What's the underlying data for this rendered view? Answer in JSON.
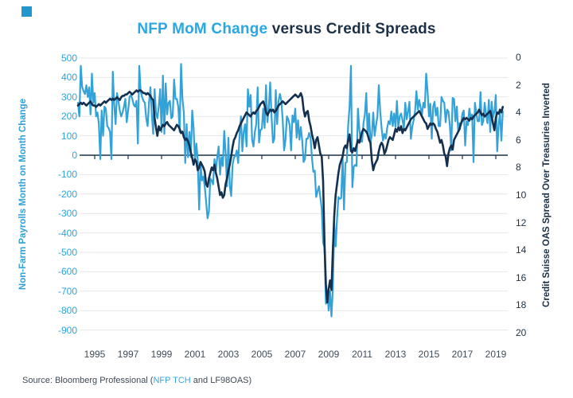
{
  "title": {
    "part1": "NFP MoM Change",
    "part2": " versus Credit Spreads",
    "blue": "#29A8E2",
    "navy": "#1C3147"
  },
  "brand_square_color": "#2496CE",
  "source": {
    "prefix": "Source: Bloomberg Professional (",
    "link": "NFP TCH",
    "suffix": " and LF98OAS)"
  },
  "chart_data": {
    "type": "line",
    "title": "NFP MoM Change versus Credit Spreads",
    "x_start": "1994-01",
    "x_frequency": "monthly",
    "x_tick_labels": [
      "1995",
      "1997",
      "1999",
      "2001",
      "2003",
      "2005",
      "2007",
      "2009",
      "2011",
      "2013",
      "2015",
      "2017",
      "2019"
    ],
    "grid": "horizontal gridlines every 100 units of left axis; dark baseline at left-axis 0 with year ticks",
    "left_axis": {
      "label": "Non-Farm Payrolls Month on Month Change",
      "ticks": [
        500,
        400,
        300,
        200,
        100,
        0,
        -100,
        -200,
        -300,
        -400,
        -500,
        -600,
        -700,
        -800,
        -900
      ],
      "range": [
        -900,
        500
      ],
      "color": "#2FA2D9"
    },
    "right_axis": {
      "label": "Credit Suisse OAS Spread Over Treasuries Inverted",
      "ticks": [
        0,
        2,
        4,
        6,
        8,
        10,
        12,
        14,
        16,
        18,
        20
      ],
      "range": [
        0,
        20
      ],
      "inverted": true,
      "color": "#1C3147"
    },
    "series": [
      {
        "name": "NFP MoM Change",
        "axis": "left",
        "color": "#33A2D9",
        "values": [
          270,
          200,
          460,
          350,
          330,
          315,
          360,
          300,
          350,
          210,
          420,
          270,
          320,
          200,
          220,
          160,
          -20,
          230,
          100,
          250,
          240,
          150,
          140,
          120,
          -20,
          430,
          260,
          160,
          320,
          280,
          230,
          200,
          220,
          250,
          290,
          170,
          230,
          300,
          310,
          290,
          260,
          250,
          280,
          60,
          460,
          330,
          300,
          280,
          270,
          190,
          150,
          270,
          350,
          210,
          110,
          340,
          220,
          190,
          250,
          340,
          120,
          410,
          110,
          370,
          210,
          270,
          280,
          190,
          200,
          390,
          290,
          290,
          250,
          120,
          470,
          290,
          220,
          -40,
          160,
          -10,
          120,
          -10,
          230,
          140,
          -30,
          60,
          -30,
          -280,
          -40,
          -130,
          -110,
          -160,
          -240,
          -325,
          -290,
          -120,
          -130,
          -150,
          -20,
          -80,
          -10,
          45,
          -100,
          -10,
          -55,
          125,
          10,
          -160,
          90,
          -160,
          -210,
          -50,
          -10,
          -5,
          25,
          -40,
          100,
          200,
          20,
          120,
          160,
          45,
          340,
          250,
          310,
          80,
          45,
          120,
          160,
          350,
          65,
          130,
          135,
          240,
          140,
          360,
          170,
          245,
          375,
          195,
          65,
          85,
          335,
          160,
          280,
          315,
          280,
          180,
          25,
          80,
          200,
          185,
          155,
          25,
          205,
          170,
          240,
          90,
          180,
          80,
          145,
          75,
          -35,
          -20,
          85,
          85,
          115,
          90,
          -15,
          -85,
          -80,
          -215,
          -185,
          -160,
          -215,
          -275,
          -450,
          -475,
          -765,
          -700,
          -800,
          -700,
          -830,
          -685,
          -355,
          -470,
          -330,
          -215,
          -225,
          -220,
          -5,
          -280,
          -40,
          -35,
          155,
          250,
          460,
          -165,
          -60,
          -50,
          -55,
          240,
          135,
          70,
          70,
          165,
          210,
          320,
          100,
          215,
          65,
          105,
          220,
          100,
          155,
          200,
          360,
          225,
          140,
          75,
          110,
          85,
          140,
          175,
          160,
          225,
          150,
          215,
          145,
          280,
          140,
          200,
          215,
          180,
          140,
          270,
          185,
          225,
          275,
          85,
          145,
          180,
          225,
          330,
          235,
          285,
          245,
          210,
          270,
          245,
          420,
          330,
          200,
          265,
          85,
          250,
          275,
          205,
          245,
          150,
          150,
          300,
          280,
          270,
          170,
          235,
          225,
          155,
          25,
          295,
          290,
          175,
          250,
          125,
          165,
          155,
          215,
          230,
          50,
          175,
          155,
          240,
          190,
          210,
          -35,
          270,
          215,
          175,
          175,
          325,
          155,
          175,
          270,
          210,
          165,
          285,
          120,
          275,
          195,
          225,
          310,
          20,
          155,
          215,
          75,
          225
        ]
      },
      {
        "name": "Credit Suisse OAS Spread Over Treasuries (inverted axis)",
        "axis": "right",
        "color": "#15304E",
        "values": [
          3.5,
          3.4,
          3.3,
          3.4,
          3.3,
          3.4,
          3.5,
          3.4,
          3.3,
          3.2,
          3.4,
          3.5,
          3.5,
          3.6,
          3.5,
          3.4,
          3.5,
          3.4,
          3.3,
          3.2,
          3.3,
          3.2,
          3.1,
          3.0,
          3.1,
          3.0,
          3.1,
          3.0,
          2.9,
          3.0,
          3.1,
          2.9,
          2.8,
          2.8,
          2.7,
          2.7,
          2.6,
          2.5,
          2.6,
          2.7,
          2.6,
          2.5,
          2.4,
          2.5,
          2.4,
          2.4,
          2.5,
          2.6,
          2.6,
          2.7,
          2.6,
          2.7,
          2.8,
          3.0,
          3.1,
          4.4,
          5.1,
          5.7,
          5.0,
          5.3,
          5.1,
          4.9,
          5.0,
          4.8,
          4.7,
          4.9,
          5.0,
          5.1,
          5.2,
          5.3,
          5.1,
          4.9,
          5.0,
          5.2,
          5.5,
          5.4,
          5.8,
          6.0,
          5.9,
          6.1,
          6.4,
          6.9,
          7.3,
          7.8,
          7.4,
          7.6,
          8.2,
          8.0,
          7.6,
          7.8,
          8.0,
          8.3,
          9.2,
          9.4,
          8.8,
          8.4,
          8.0,
          8.2,
          7.8,
          8.4,
          8.8,
          9.4,
          10.0,
          9.8,
          10.2,
          10.0,
          9.2,
          8.8,
          8.2,
          7.8,
          7.2,
          6.5,
          6.0,
          5.8,
          5.5,
          5.3,
          5.0,
          4.8,
          4.6,
          4.4,
          4.2,
          4.0,
          4.1,
          4.2,
          4.3,
          4.1,
          4.0,
          4.1,
          3.9,
          3.8,
          3.6,
          3.4,
          3.3,
          3.2,
          3.5,
          4.0,
          4.2,
          4.0,
          3.8,
          3.9,
          3.8,
          4.0,
          3.9,
          3.7,
          3.5,
          3.4,
          3.3,
          3.2,
          3.3,
          3.4,
          3.3,
          3.2,
          3.1,
          3.0,
          2.9,
          2.8,
          2.7,
          2.8,
          2.9,
          2.8,
          2.6,
          2.9,
          3.8,
          4.3,
          4.0,
          3.9,
          4.6,
          5.0,
          5.6,
          6.0,
          6.6,
          6.0,
          5.8,
          6.4,
          7.0,
          7.2,
          9.0,
          13.5,
          16.5,
          17.8,
          16.8,
          16.2,
          16.9,
          14.0,
          11.5,
          10.0,
          9.2,
          8.4,
          7.8,
          7.5,
          7.2,
          6.6,
          6.4,
          6.6,
          6.0,
          5.6,
          6.8,
          6.9,
          6.6,
          6.8,
          6.4,
          6.0,
          6.2,
          5.8,
          5.4,
          5.2,
          5.3,
          5.4,
          5.6,
          6.0,
          6.2,
          7.5,
          8.2,
          7.8,
          7.6,
          7.4,
          6.8,
          6.4,
          6.2,
          6.4,
          7.0,
          6.8,
          6.4,
          6.0,
          5.8,
          5.9,
          6.0,
          5.6,
          5.2,
          5.4,
          5.1,
          5.3,
          5.0,
          5.5,
          5.2,
          5.3,
          5.1,
          4.9,
          4.7,
          4.5,
          4.4,
          4.3,
          4.2,
          4.1,
          4.0,
          3.9,
          4.1,
          4.3,
          4.5,
          4.7,
          4.8,
          5.2,
          5.0,
          4.8,
          4.9,
          4.8,
          4.9,
          5.2,
          5.4,
          5.8,
          6.2,
          6.0,
          6.4,
          7.0,
          7.2,
          7.9,
          7.0,
          6.6,
          6.4,
          6.7,
          6.0,
          5.8,
          5.6,
          5.4,
          5.2,
          4.8,
          4.6,
          4.4,
          4.5,
          4.4,
          4.5,
          4.6,
          4.4,
          4.5,
          4.3,
          4.2,
          4.1,
          4.0,
          3.8,
          4.0,
          4.2,
          4.1,
          4.3,
          4.2,
          4.1,
          4.0,
          3.9,
          4.3,
          4.8,
          5.3,
          4.4,
          4.0,
          4.1,
          3.8,
          4.0,
          3.6
        ]
      }
    ]
  }
}
